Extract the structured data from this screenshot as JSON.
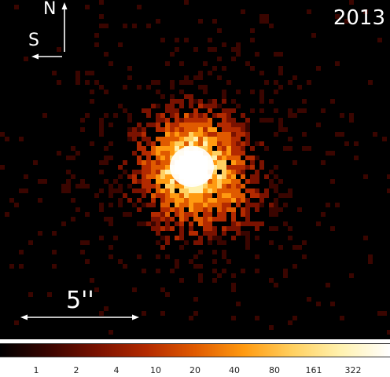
{
  "image": {
    "year_label": "2013",
    "compass": {
      "north": "N",
      "side": "S"
    },
    "scale_bar_label": "5''",
    "background_color": "#000000",
    "colormap": [
      "#000000",
      "#3a0500",
      "#7a1200",
      "#b32a00",
      "#e05a00",
      "#ff9a10",
      "#ffd060",
      "#fff2b0",
      "#ffffff"
    ]
  },
  "colorbar": {
    "ticks": [
      "1",
      "2",
      "4",
      "10",
      "20",
      "40",
      "80",
      "161",
      "322"
    ]
  }
}
